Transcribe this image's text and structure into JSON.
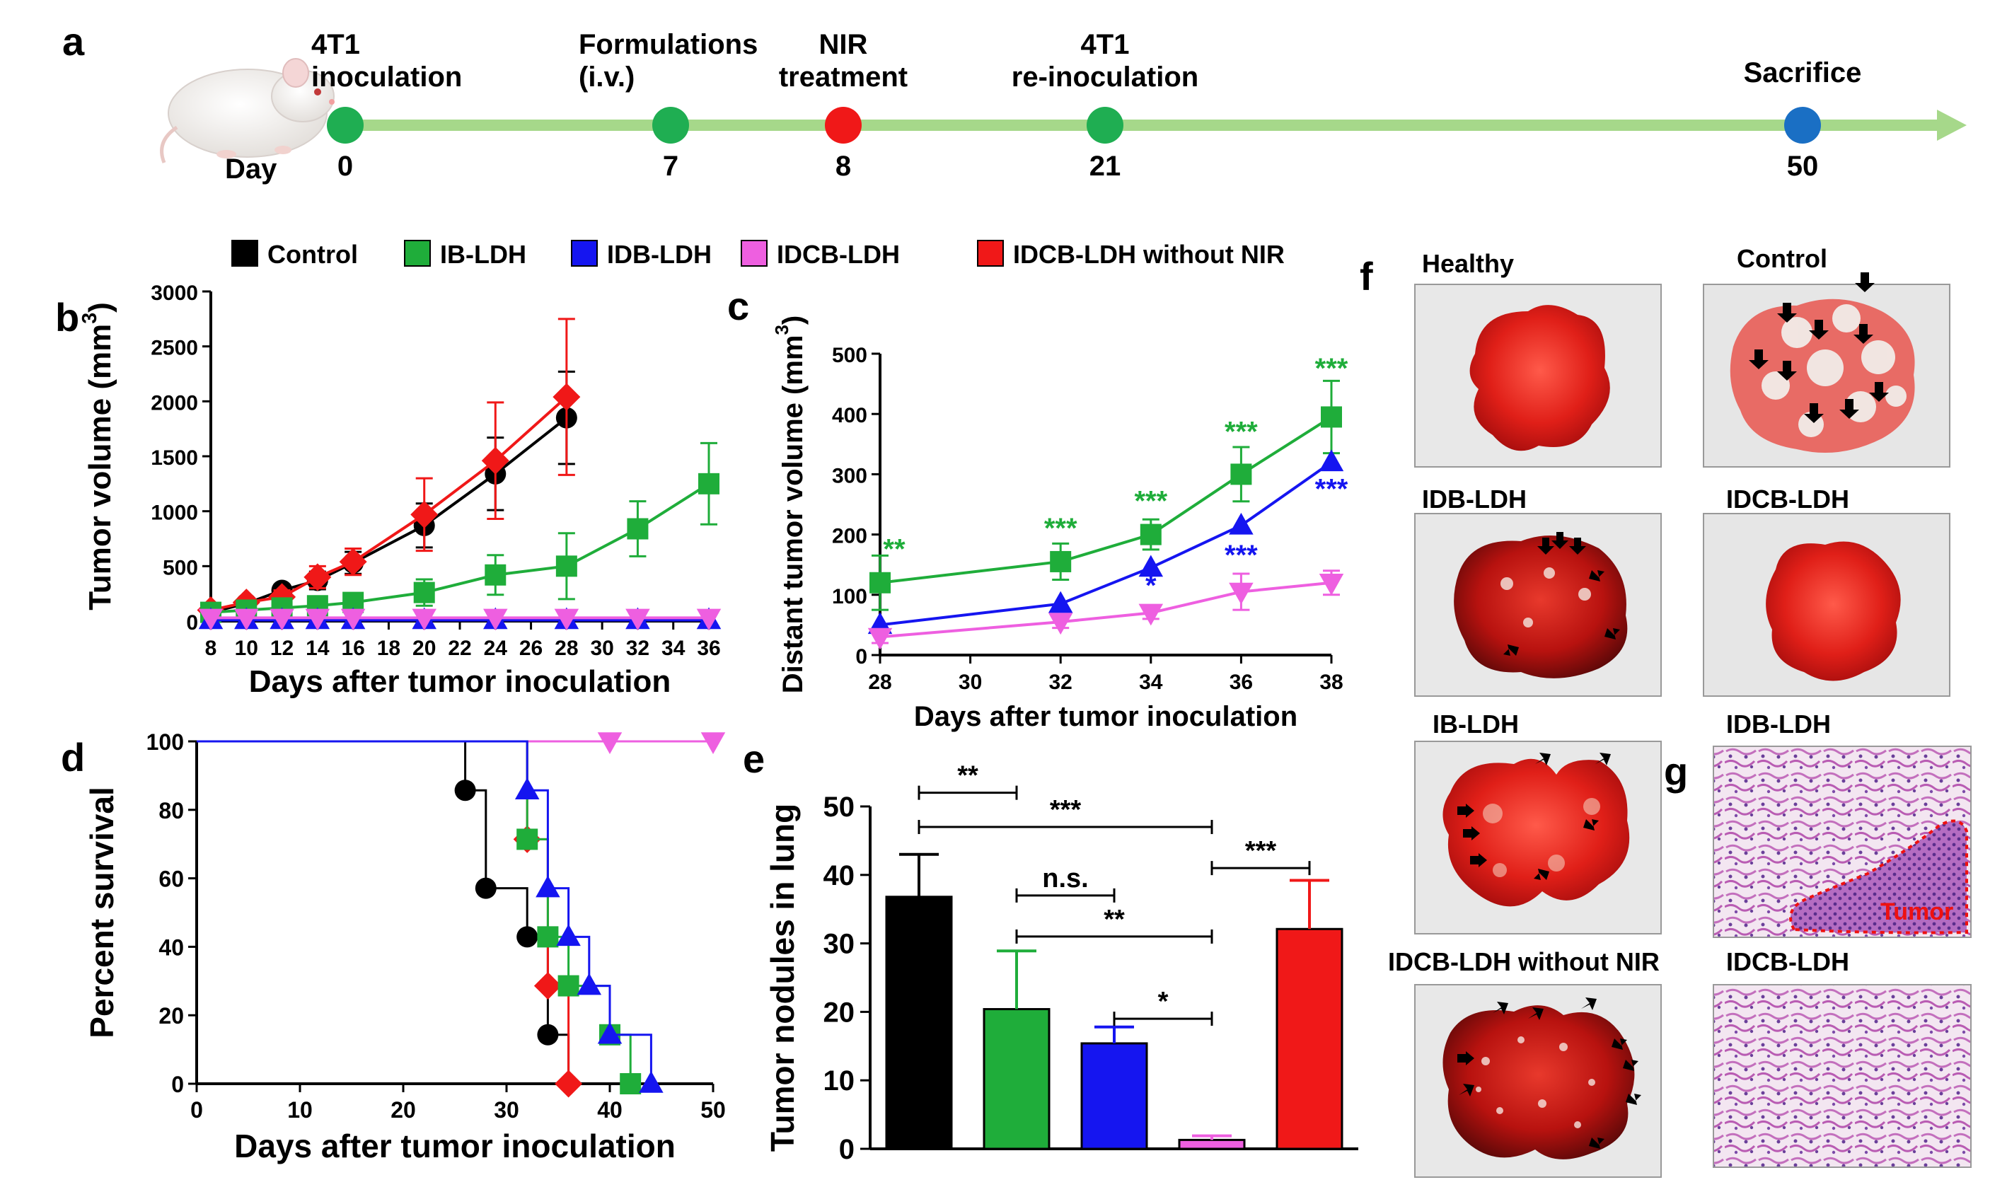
{
  "colors": {
    "black": "#000000",
    "green": "#1fad3a",
    "blue": "#1515f0",
    "pink": "#ee5fe0",
    "red": "#f01818",
    "arrow": "#a6d88a",
    "tl_green": "#1fae52",
    "tl_red": "#f01818",
    "tl_blue": "#1a6fc4"
  },
  "panel_letters": {
    "a": "a",
    "b": "b",
    "c": "c",
    "d": "d",
    "e": "e",
    "f": "f",
    "g": "g"
  },
  "timeline": {
    "day_label": "Day",
    "events": [
      {
        "day": "0",
        "label1": "4T1",
        "label2": "inoculation",
        "color": "#1fae52"
      },
      {
        "day": "7",
        "label1": "Formulations",
        "label2": "(i.v.)",
        "color": "#1fae52"
      },
      {
        "day": "8",
        "label1": "NIR",
        "label2": "treatment",
        "color": "#f01818"
      },
      {
        "day": "21",
        "label1": "4T1",
        "label2": "re-inoculation",
        "color": "#1fae52"
      },
      {
        "day": "50",
        "label1": "Sacrifice",
        "label2": "",
        "color": "#1a6fc4"
      }
    ]
  },
  "legend": [
    {
      "name": "Control",
      "color": "#000000"
    },
    {
      "name": "IB-LDH",
      "color": "#1fad3a"
    },
    {
      "name": "IDB-LDH",
      "color": "#1515f0"
    },
    {
      "name": "IDCB-LDH",
      "color": "#ee5fe0"
    },
    {
      "name": "IDCB-LDH without NIR",
      "color": "#f01818"
    }
  ],
  "chart_data": [
    {
      "panel": "b",
      "type": "line",
      "xlabel": "Days after tumor inoculation",
      "ylabel": "Tumor volume (mm",
      "ylabel_sup": "3",
      "ylabel_end": ")",
      "xlim": [
        8,
        36
      ],
      "ylim": [
        0,
        3000
      ],
      "xticks": [
        8,
        10,
        12,
        14,
        16,
        18,
        20,
        22,
        24,
        26,
        28,
        30,
        32,
        34,
        36
      ],
      "yticks": [
        0,
        500,
        1000,
        1500,
        2000,
        2500,
        3000
      ],
      "series": [
        {
          "name": "Control",
          "marker": "circle",
          "color": "#000000",
          "x": [
            8,
            10,
            12,
            14,
            16,
            20,
            24,
            28
          ],
          "y": [
            80,
            160,
            280,
            370,
            530,
            870,
            1340,
            1850
          ],
          "err": [
            30,
            40,
            50,
            80,
            100,
            200,
            330,
            420
          ]
        },
        {
          "name": "IDCB-LDH without NIR",
          "marker": "diamond",
          "color": "#f01818",
          "x": [
            8,
            10,
            12,
            14,
            16,
            20,
            24,
            28
          ],
          "y": [
            100,
            170,
            220,
            400,
            540,
            970,
            1460,
            2040
          ],
          "err": [
            30,
            40,
            60,
            100,
            120,
            330,
            530,
            710
          ]
        },
        {
          "name": "IB-LDH",
          "marker": "square",
          "color": "#1fad3a",
          "x": [
            8,
            10,
            12,
            14,
            16,
            20,
            24,
            28,
            32,
            36
          ],
          "y": [
            80,
            100,
            120,
            140,
            170,
            260,
            420,
            500,
            840,
            1250
          ],
          "err": [
            20,
            30,
            40,
            50,
            60,
            120,
            180,
            300,
            250,
            370
          ]
        },
        {
          "name": "IDB-LDH",
          "marker": "triangle",
          "color": "#1515f0",
          "x": [
            8,
            10,
            12,
            14,
            16,
            20,
            24,
            28,
            32,
            36
          ],
          "y": [
            10,
            10,
            10,
            10,
            10,
            10,
            10,
            10,
            10,
            10
          ],
          "err": []
        },
        {
          "name": "IDCB-LDH",
          "marker": "tridown",
          "color": "#ee5fe0",
          "x": [
            8,
            10,
            12,
            14,
            16,
            20,
            24,
            28,
            32,
            36
          ],
          "y": [
            30,
            30,
            30,
            30,
            30,
            30,
            30,
            30,
            30,
            30
          ],
          "err": []
        }
      ]
    },
    {
      "panel": "c",
      "type": "line",
      "xlabel": "Days after tumor inoculation",
      "ylabel": "Distant tumor volume (mm",
      "ylabel_sup": "3",
      "ylabel_end": ")",
      "xlim": [
        28,
        38
      ],
      "ylim": [
        0,
        500
      ],
      "xticks": [
        28,
        30,
        32,
        34,
        36,
        38
      ],
      "yticks": [
        0,
        100,
        200,
        300,
        400,
        500
      ],
      "series": [
        {
          "name": "IB-LDH",
          "marker": "square",
          "color": "#1fad3a",
          "x": [
            28,
            32,
            34,
            36,
            38
          ],
          "y": [
            120,
            155,
            200,
            300,
            395
          ],
          "err": [
            45,
            30,
            25,
            45,
            60
          ]
        },
        {
          "name": "IDB-LDH",
          "marker": "triangle",
          "color": "#1515f0",
          "x": [
            28,
            32,
            34,
            36,
            38
          ],
          "y": [
            50,
            85,
            145,
            215,
            320
          ],
          "err": []
        },
        {
          "name": "IDCB-LDH",
          "marker": "tridown",
          "color": "#ee5fe0",
          "x": [
            28,
            32,
            34,
            36,
            38
          ],
          "y": [
            30,
            55,
            70,
            105,
            120
          ],
          "err": [
            10,
            10,
            10,
            30,
            20
          ]
        }
      ],
      "annotations": [
        {
          "x": 28,
          "y": 160,
          "text": "**",
          "color": "#1fad3a"
        },
        {
          "x": 32,
          "y": 195,
          "text": "***",
          "color": "#1fad3a"
        },
        {
          "x": 34,
          "y": 240,
          "text": "***",
          "color": "#1fad3a"
        },
        {
          "x": 36,
          "y": 355,
          "text": "***",
          "color": "#1fad3a"
        },
        {
          "x": 38,
          "y": 460,
          "text": "***",
          "color": "#1fad3a"
        },
        {
          "x": 34,
          "y": 100,
          "text": "*",
          "color": "#1515f0"
        },
        {
          "x": 36,
          "y": 150,
          "text": "***",
          "color": "#1515f0"
        },
        {
          "x": 38,
          "y": 260,
          "text": "***",
          "color": "#1515f0"
        }
      ]
    },
    {
      "panel": "d",
      "type": "line",
      "xlabel": "Days after tumor inoculation",
      "ylabel": "Percent survival",
      "xlim": [
        0,
        50
      ],
      "ylim": [
        0,
        100
      ],
      "xticks": [
        0,
        10,
        20,
        30,
        40,
        50
      ],
      "yticks": [
        0,
        20,
        40,
        60,
        80,
        100
      ],
      "series": [
        {
          "name": "IDCB-LDH",
          "marker": "tridown",
          "color": "#ee5fe0",
          "steps": [
            [
              0,
              100
            ],
            [
              50,
              100
            ]
          ],
          "points": [
            [
              40,
              100
            ],
            [
              50,
              100
            ]
          ]
        },
        {
          "name": "Control",
          "marker": "circle",
          "color": "#000000",
          "steps": [
            [
              0,
              100
            ],
            [
              26,
              100
            ],
            [
              26,
              85.7
            ],
            [
              28,
              85.7
            ],
            [
              28,
              57.1
            ],
            [
              32,
              57.1
            ],
            [
              32,
              42.9
            ],
            [
              34,
              42.9
            ],
            [
              34,
              14.3
            ],
            [
              36,
              14.3
            ],
            [
              36,
              0
            ]
          ],
          "points": [
            [
              26,
              85.7
            ],
            [
              28,
              57.1
            ],
            [
              32,
              42.9
            ],
            [
              34,
              14.3
            ]
          ]
        },
        {
          "name": "IDCB-LDH without NIR",
          "marker": "diamond",
          "color": "#f01818",
          "steps": [
            [
              0,
              100
            ],
            [
              32,
              100
            ],
            [
              32,
              71.4
            ],
            [
              34,
              71.4
            ],
            [
              34,
              28.6
            ],
            [
              36,
              28.6
            ],
            [
              36,
              0
            ]
          ],
          "points": [
            [
              32,
              71.4
            ],
            [
              34,
              28.6
            ],
            [
              36,
              0
            ]
          ]
        },
        {
          "name": "IB-LDH",
          "marker": "square",
          "color": "#1fad3a",
          "steps": [
            [
              0,
              100
            ],
            [
              32,
              100
            ],
            [
              32,
              71.4
            ],
            [
              34,
              71.4
            ],
            [
              34,
              42.9
            ],
            [
              36,
              42.9
            ],
            [
              36,
              28.6
            ],
            [
              40,
              28.6
            ],
            [
              40,
              14.3
            ],
            [
              42,
              14.3
            ],
            [
              42,
              0
            ]
          ],
          "points": [
            [
              32,
              71.4
            ],
            [
              34,
              42.9
            ],
            [
              36,
              28.6
            ],
            [
              40,
              14.3
            ],
            [
              42,
              0
            ]
          ]
        },
        {
          "name": "IDB-LDH",
          "marker": "triangle",
          "color": "#1515f0",
          "steps": [
            [
              0,
              100
            ],
            [
              32,
              100
            ],
            [
              32,
              85.7
            ],
            [
              34,
              85.7
            ],
            [
              34,
              57.1
            ],
            [
              36,
              57.1
            ],
            [
              36,
              42.9
            ],
            [
              38,
              42.9
            ],
            [
              38,
              28.6
            ],
            [
              40,
              28.6
            ],
            [
              40,
              14.3
            ],
            [
              44,
              14.3
            ],
            [
              44,
              0
            ]
          ],
          "points": [
            [
              32,
              85.7
            ],
            [
              34,
              57.1
            ],
            [
              36,
              42.9
            ],
            [
              38,
              28.6
            ],
            [
              40,
              14.3
            ],
            [
              44,
              0
            ]
          ]
        }
      ]
    },
    {
      "panel": "e",
      "type": "bar",
      "ylabel": "Tumor nodules in lung",
      "ylim": [
        0,
        50
      ],
      "yticks": [
        0,
        10,
        20,
        30,
        40,
        50
      ],
      "categories": [
        "Control",
        "IB-LDH",
        "IDB-LDH",
        "IDCB-LDH",
        "IDCB-LDH without NIR"
      ],
      "values": [
        36.8,
        20.4,
        15.4,
        1.3,
        32.1
      ],
      "errors": [
        6.2,
        8.5,
        2.4,
        0.6,
        7.1
      ],
      "colors": [
        "#000000",
        "#1fad3a",
        "#1515f0",
        "#ee5fe0",
        "#f01818"
      ],
      "significance": [
        {
          "from": 0,
          "to": 1,
          "y": 52,
          "text": "**"
        },
        {
          "from": 0,
          "to": 3,
          "y": 47,
          "text": "***"
        },
        {
          "from": 3,
          "to": 4,
          "y": 41,
          "text": "***"
        },
        {
          "from": 1,
          "to": 2,
          "y": 37,
          "text": "n.s."
        },
        {
          "from": 1,
          "to": 3,
          "y": 31,
          "text": "**"
        },
        {
          "from": 2,
          "to": 3,
          "y": 19,
          "text": "*"
        }
      ]
    }
  ],
  "panel_f": {
    "labels": [
      "Healthy",
      "Control",
      "IDB-LDH",
      "IDCB-LDH",
      "IB-LDH",
      "IDCB-LDH without NIR"
    ]
  },
  "panel_g": {
    "labels": [
      "IDB-LDH",
      "IDCB-LDH"
    ],
    "tumor_label": "Tumor"
  }
}
